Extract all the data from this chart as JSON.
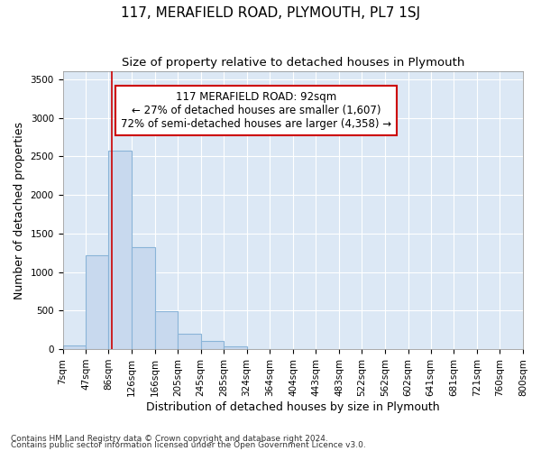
{
  "title": "117, MERAFIELD ROAD, PLYMOUTH, PL7 1SJ",
  "subtitle": "Size of property relative to detached houses in Plymouth",
  "xlabel": "Distribution of detached houses by size in Plymouth",
  "ylabel": "Number of detached properties",
  "footnote1": "Contains HM Land Registry data © Crown copyright and database right 2024.",
  "footnote2": "Contains public sector information licensed under the Open Government Licence v3.0.",
  "bin_edges": [
    7,
    47,
    86,
    126,
    166,
    205,
    245,
    285,
    324,
    364,
    404,
    443,
    483,
    522,
    562,
    602,
    641,
    681,
    721,
    760,
    800
  ],
  "bar_heights": [
    50,
    1220,
    2570,
    1320,
    490,
    200,
    110,
    40,
    5,
    2,
    1,
    0,
    0,
    0,
    0,
    0,
    0,
    0,
    0,
    0
  ],
  "bar_color": "#c8d9ee",
  "bar_edge_color": "#8ab4d8",
  "property_size": 92,
  "red_line_color": "#cc0000",
  "annotation_line1": "117 MERAFIELD ROAD: 92sqm",
  "annotation_line2": "← 27% of detached houses are smaller (1,607)",
  "annotation_line3": "72% of semi-detached houses are larger (4,358) →",
  "annotation_box_color": "#cc0000",
  "ylim": [
    0,
    3600
  ],
  "yticks": [
    0,
    500,
    1000,
    1500,
    2000,
    2500,
    3000,
    3500
  ],
  "background_color": "#dce8f5",
  "grid_color": "#ffffff",
  "title_fontsize": 11,
  "subtitle_fontsize": 9.5,
  "axis_label_fontsize": 9,
  "tick_fontsize": 7.5,
  "footnote_fontsize": 6.5
}
